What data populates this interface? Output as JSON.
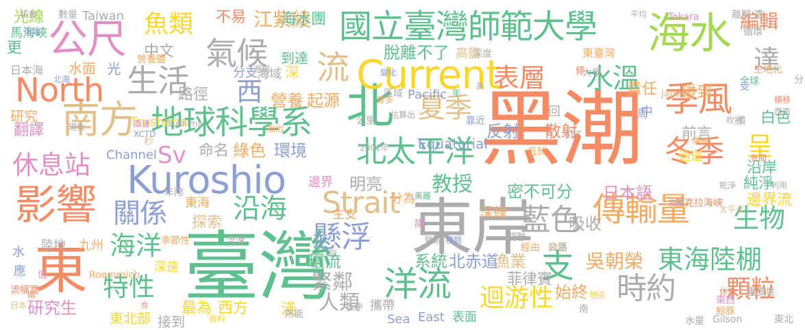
{
  "palette": {
    "coral": "#f58b64",
    "green": "#5fbf8f",
    "orange": "#f7aa62",
    "blue": "#8c9fd3",
    "pink": "#e28fc6",
    "lime": "#a6d856",
    "yellow": "#fbd62c",
    "tan": "#e2c08c",
    "gray": "#acacac"
  },
  "words": [
    "黑潮",
    "臺灣",
    "東岸",
    "北",
    "東",
    "海水",
    "Current",
    "公尺",
    "Kuroshio",
    "影響",
    "南方",
    "地球科學系",
    "North",
    "季風",
    "國立臺灣師範大學",
    "流",
    "傳輸量",
    "北太平洋",
    "Strait",
    "支",
    "氣候",
    "生活",
    "休息站",
    "洋流",
    "表層",
    "夏季",
    "冬季",
    "東海陸棚",
    "時約",
    "藍色",
    "懸浮",
    "沿海",
    "魚類",
    "關係",
    "海洋",
    "特性",
    "水溫",
    "顆粒",
    "迴游性",
    "Sv",
    "達",
    "生物",
    "西",
    "呈",
    "教授",
    "緊鄰",
    "人類",
    "編輯",
    "吳朝榮",
    "江紫綾",
    "日本語",
    "密不可分",
    "漁業",
    "反射",
    "散射",
    "營養",
    "起源",
    "脫離不了",
    "環境",
    "綠色",
    "研究生",
    "命名",
    "探索",
    "中文",
    "路徑",
    "水面",
    "翻譯",
    "白色",
    "純淨",
    "前言",
    "責任",
    "碰到",
    "系統",
    "北赤道",
    "環流",
    "最為",
    "西方",
    "始終",
    "吸收",
    "邊界流",
    "明亮",
    "菲律賓",
    "海水團",
    "不易",
    "光線",
    "研究",
    "東北部",
    "沿岸",
    "Equatorial",
    "深線",
    "更",
    "光",
    "淺",
    "接到",
    "攜帶",
    "主支",
    "表面",
    "到達",
    "深",
    "高鹽",
    "Pacific",
    "Tsushima",
    "Channel",
    "Sea",
    "East",
    "Taiwan",
    "分支",
    "數量",
    "馬海峽",
    "日本海",
    "九州",
    "陸地",
    "水",
    "應",
    "流幅寬",
    "東海",
    "中",
    "回",
    "分為",
    "邊界",
    "深遠",
    "通道",
    "重要性",
    "海域",
    "深度",
    "東臺灣",
    "低於",
    "Japan",
    "全球",
    "變化",
    "XBT",
    "XCTD",
    "Roemmich",
    "Tokara",
    "Gilson",
    "圖克拉海峽",
    "公里",
    "低",
    "季節性",
    "流速",
    "東西",
    "鯨豚",
    "水量",
    "東北",
    "分",
    "循環",
    "平均",
    "遭",
    "橫移",
    "西南",
    "潰",
    "受",
    "離開",
    "生地化",
    "吹拂",
    "參閱",
    "乾淨",
    "利用",
    "太平洋",
    "高溫",
    "經由",
    "公路",
    "資料",
    "延伸",
    "休息",
    "日本",
    "年際",
    "熱能",
    "高",
    "靠近",
    "條",
    "周",
    "年",
    "指出",
    "區域",
    "鹽類",
    "種類",
    "繁多",
    "2001年",
    "Tsushima",
    "估算出",
    "高速",
    "食",
    "秒",
    "營養鹽",
    "現象",
    "北海",
    "兩",
    "照",
    "週期",
    "南端",
    "拓寬",
    "地區",
    "傳輸",
    "南",
    "主軸",
    "美麗",
    "讀",
    "大學",
    "關聯"
  ]
}
